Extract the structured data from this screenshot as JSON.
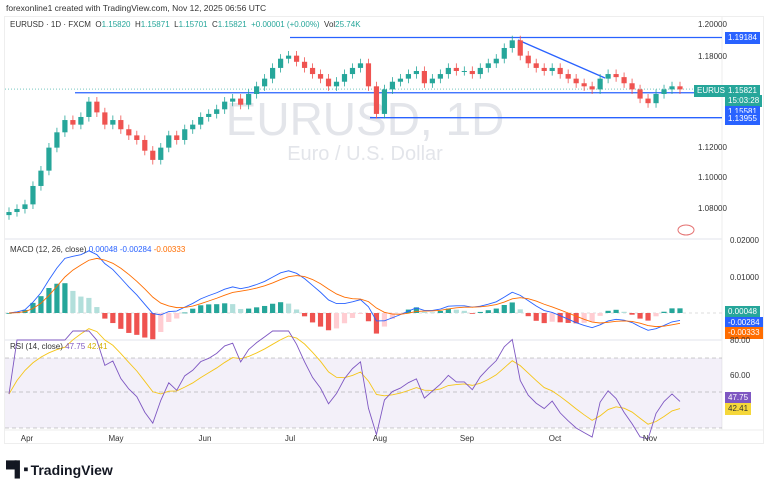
{
  "credit": "forexonline1 created with TradingView.com, Nov 12, 2025 06:56 UTC",
  "legend": {
    "symbol": "EURUSD · 1D · FXCM",
    "o_label": "O",
    "o": "1.15820",
    "h_label": "H",
    "h": "1.15871",
    "l_label": "L",
    "l": "1.15701",
    "c_label": "C",
    "c": "1.15821",
    "change": "+0.00001 (+0.00%)",
    "vol_label": "Vol",
    "vol": "25.74K"
  },
  "watermark": {
    "title": "EURUSD, 1D",
    "subtitle": "Euro / U.S. Dollar"
  },
  "price_axis": {
    "ticks": [
      "1.20000",
      "1.18000",
      "1.12000",
      "1.10000",
      "1.08000"
    ],
    "tick_values": [
      1.2,
      1.18,
      1.12,
      1.1,
      1.08
    ]
  },
  "price_tags": {
    "symbol": "EURUSD",
    "last": "1.15821",
    "countdown": "15:03:28",
    "level_high": "1.19184",
    "level_mid": "1.15581",
    "level_low": "1.13955"
  },
  "levels": [
    1.19184,
    1.15581,
    1.13955
  ],
  "macd": {
    "label": "MACD (12, 26, close)",
    "hist": "0.00048",
    "macd": "-0.00284",
    "signal": "-0.00333",
    "ticks": [
      "0.02000",
      "0.01000"
    ]
  },
  "rsi": {
    "label": "RSI (14, close)",
    "value": "47.75",
    "ma": "42.41",
    "ticks": [
      "80.00",
      "60.00"
    ]
  },
  "time_axis": [
    "Apr",
    "May",
    "Jun",
    "Jul",
    "Aug",
    "Sep",
    "Oct",
    "Nov"
  ],
  "colors": {
    "up": "#26a69a",
    "down": "#ef5350",
    "line": "#2962ff",
    "macd": "#2962ff",
    "signal": "#ff6d00",
    "rsi": "#7e57c2",
    "rsi_ma": "#f5c518"
  },
  "closes": [
    1.078,
    1.08,
    1.083,
    1.095,
    1.105,
    1.12,
    1.13,
    1.138,
    1.135,
    1.14,
    1.15,
    1.143,
    1.135,
    1.138,
    1.132,
    1.128,
    1.125,
    1.118,
    1.112,
    1.12,
    1.128,
    1.125,
    1.132,
    1.135,
    1.14,
    1.142,
    1.145,
    1.15,
    1.152,
    1.148,
    1.155,
    1.16,
    1.165,
    1.172,
    1.178,
    1.18,
    1.176,
    1.172,
    1.168,
    1.165,
    1.16,
    1.163,
    1.168,
    1.172,
    1.175,
    1.16,
    1.142,
    1.158,
    1.163,
    1.165,
    1.168,
    1.17,
    1.162,
    1.165,
    1.168,
    1.172,
    1.17,
    1.17,
    1.168,
    1.172,
    1.175,
    1.178,
    1.185,
    1.19,
    1.18,
    1.175,
    1.172,
    1.17,
    1.172,
    1.168,
    1.165,
    1.162,
    1.16,
    1.158,
    1.165,
    1.168,
    1.166,
    1.162,
    1.158,
    1.152,
    1.149,
    1.155,
    1.158,
    1.16,
    1.158
  ],
  "brand": "TradingView"
}
